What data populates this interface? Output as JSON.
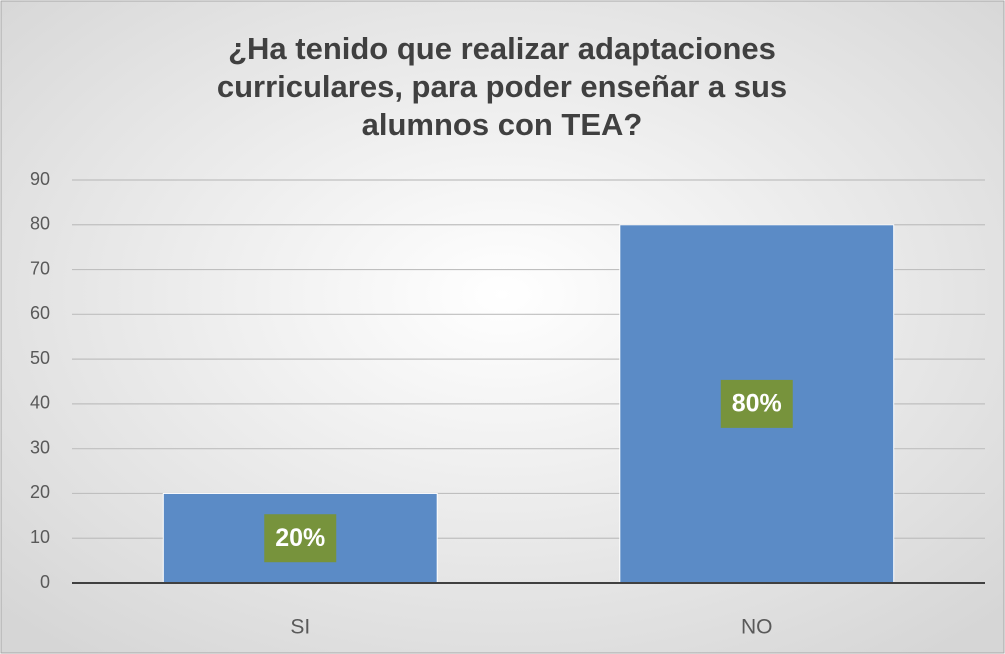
{
  "chart_data": {
    "type": "bar",
    "title": "¿Ha tenido que realizar adaptaciones curriculares, para poder enseñar a sus alumnos con TEA?",
    "categories": [
      "SI",
      "NO"
    ],
    "values": [
      20,
      80
    ],
    "value_labels": [
      "20%",
      "80%"
    ],
    "color": "#5b8bc6",
    "label_color": "#77933c",
    "ylim": [
      0,
      90
    ],
    "yticks": [
      0,
      10,
      20,
      30,
      40,
      50,
      60,
      70,
      80,
      90
    ],
    "grid": true
  }
}
